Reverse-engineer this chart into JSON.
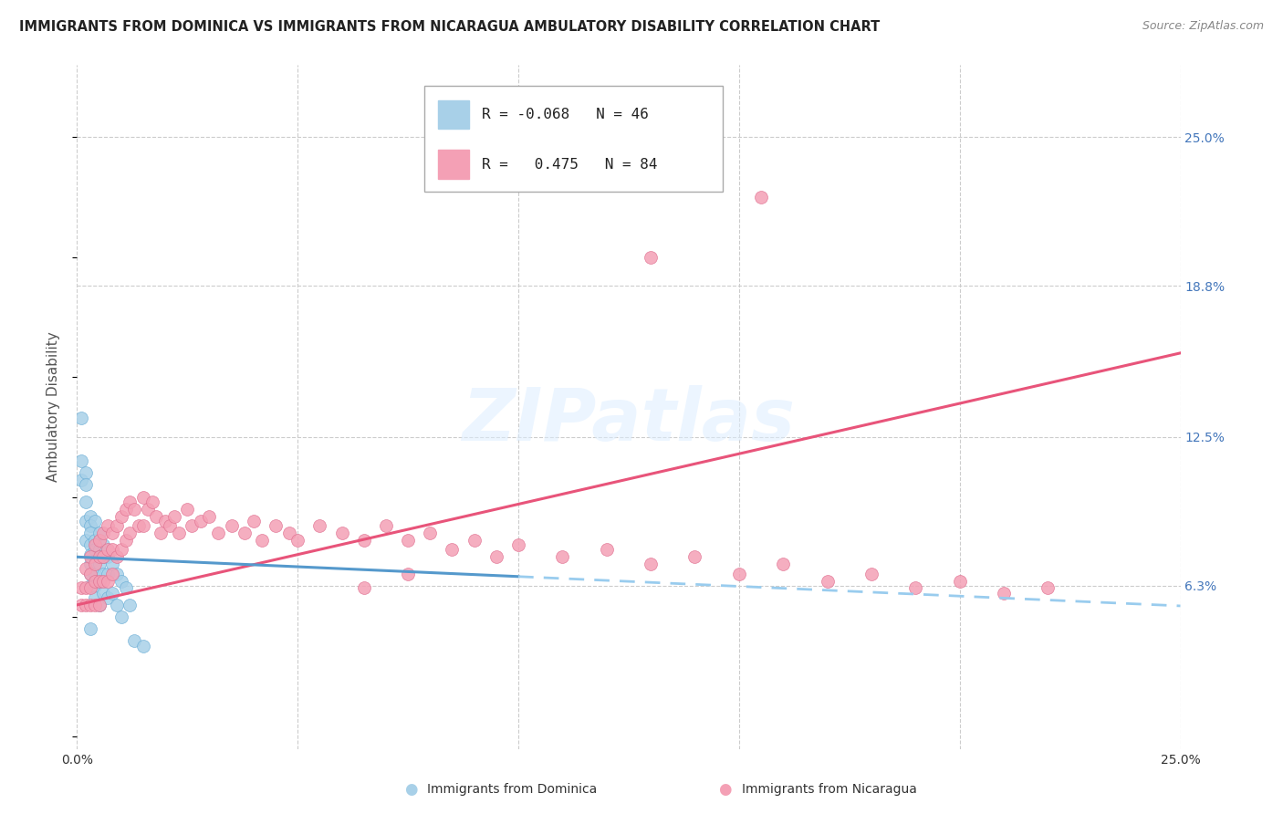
{
  "title": "IMMIGRANTS FROM DOMINICA VS IMMIGRANTS FROM NICARAGUA AMBULATORY DISABILITY CORRELATION CHART",
  "source": "Source: ZipAtlas.com",
  "ylabel": "Ambulatory Disability",
  "xlim": [
    0.0,
    0.25
  ],
  "ylim": [
    -0.005,
    0.28
  ],
  "ytick_labels": [
    "6.3%",
    "12.5%",
    "18.8%",
    "25.0%"
  ],
  "ytick_values": [
    0.063,
    0.125,
    0.188,
    0.25
  ],
  "color_dominica": "#a8d0e8",
  "color_nicaragua": "#f4a0b5",
  "trendline_dominica_solid_color": "#5599cc",
  "trendline_dominica_dash_color": "#99ccee",
  "trendline_nicaragua_color": "#e8547a",
  "background_color": "#ffffff",
  "watermark": "ZIPatlas",
  "legend1_R": "-0.068",
  "legend1_N": "46",
  "legend2_R": "0.475",
  "legend2_N": "84",
  "dom_x": [
    0.001,
    0.001,
    0.001,
    0.002,
    0.002,
    0.002,
    0.002,
    0.002,
    0.003,
    0.003,
    0.003,
    0.003,
    0.003,
    0.003,
    0.003,
    0.003,
    0.004,
    0.004,
    0.004,
    0.004,
    0.004,
    0.004,
    0.004,
    0.005,
    0.005,
    0.005,
    0.005,
    0.005,
    0.006,
    0.006,
    0.006,
    0.006,
    0.007,
    0.007,
    0.007,
    0.008,
    0.008,
    0.009,
    0.009,
    0.01,
    0.01,
    0.011,
    0.012,
    0.013,
    0.015,
    0.003
  ],
  "dom_y": [
    0.133,
    0.115,
    0.107,
    0.11,
    0.105,
    0.098,
    0.09,
    0.082,
    0.092,
    0.088,
    0.085,
    0.08,
    0.076,
    0.072,
    0.068,
    0.063,
    0.09,
    0.082,
    0.078,
    0.073,
    0.068,
    0.063,
    0.058,
    0.085,
    0.078,
    0.072,
    0.065,
    0.055,
    0.08,
    0.075,
    0.068,
    0.06,
    0.075,
    0.068,
    0.058,
    0.072,
    0.06,
    0.068,
    0.055,
    0.065,
    0.05,
    0.062,
    0.055,
    0.04,
    0.038,
    0.045
  ],
  "nic_x": [
    0.001,
    0.001,
    0.002,
    0.002,
    0.002,
    0.003,
    0.003,
    0.003,
    0.003,
    0.004,
    0.004,
    0.004,
    0.004,
    0.005,
    0.005,
    0.005,
    0.005,
    0.006,
    0.006,
    0.006,
    0.007,
    0.007,
    0.007,
    0.008,
    0.008,
    0.008,
    0.009,
    0.009,
    0.01,
    0.01,
    0.011,
    0.011,
    0.012,
    0.012,
    0.013,
    0.014,
    0.015,
    0.015,
    0.016,
    0.017,
    0.018,
    0.019,
    0.02,
    0.021,
    0.022,
    0.023,
    0.025,
    0.026,
    0.028,
    0.03,
    0.032,
    0.035,
    0.038,
    0.04,
    0.042,
    0.045,
    0.048,
    0.05,
    0.055,
    0.06,
    0.065,
    0.07,
    0.075,
    0.08,
    0.085,
    0.09,
    0.095,
    0.1,
    0.11,
    0.12,
    0.13,
    0.14,
    0.15,
    0.16,
    0.17,
    0.18,
    0.19,
    0.2,
    0.21,
    0.22,
    0.155,
    0.13,
    0.065,
    0.075
  ],
  "nic_y": [
    0.062,
    0.055,
    0.07,
    0.062,
    0.055,
    0.075,
    0.068,
    0.062,
    0.055,
    0.08,
    0.072,
    0.065,
    0.055,
    0.082,
    0.075,
    0.065,
    0.055,
    0.085,
    0.075,
    0.065,
    0.088,
    0.078,
    0.065,
    0.085,
    0.078,
    0.068,
    0.088,
    0.075,
    0.092,
    0.078,
    0.095,
    0.082,
    0.098,
    0.085,
    0.095,
    0.088,
    0.1,
    0.088,
    0.095,
    0.098,
    0.092,
    0.085,
    0.09,
    0.088,
    0.092,
    0.085,
    0.095,
    0.088,
    0.09,
    0.092,
    0.085,
    0.088,
    0.085,
    0.09,
    0.082,
    0.088,
    0.085,
    0.082,
    0.088,
    0.085,
    0.082,
    0.088,
    0.082,
    0.085,
    0.078,
    0.082,
    0.075,
    0.08,
    0.075,
    0.078,
    0.072,
    0.075,
    0.068,
    0.072,
    0.065,
    0.068,
    0.062,
    0.065,
    0.06,
    0.062,
    0.225,
    0.2,
    0.062,
    0.068
  ]
}
